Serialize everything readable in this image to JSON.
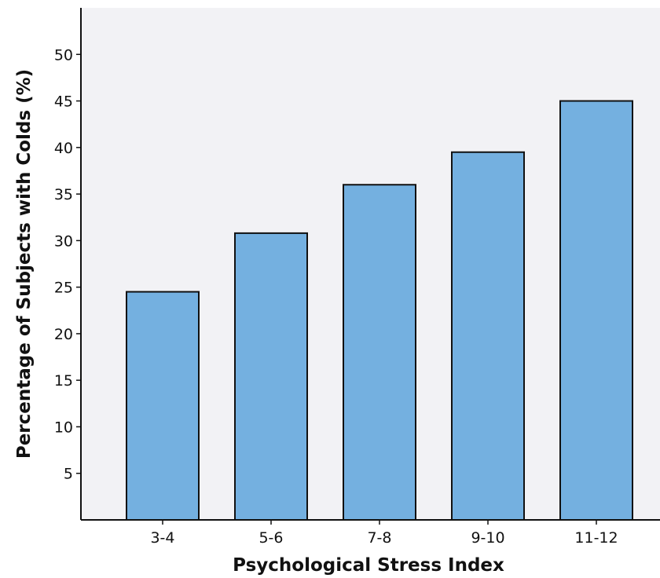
{
  "chart_data": {
    "type": "bar",
    "title": "",
    "xlabel": "Psychological Stress Index",
    "ylabel": "Percentage of Subjects with Colds (%)",
    "categories": [
      "3-4",
      "5-6",
      "7-8",
      "9-10",
      "11-12"
    ],
    "values": [
      24.5,
      30.8,
      36.0,
      39.5,
      45.0
    ],
    "ylim": [
      0,
      55
    ],
    "yticks": [
      5,
      10,
      15,
      20,
      25,
      30,
      35,
      40,
      45,
      50
    ],
    "grid": false,
    "legend": "none",
    "colors": {
      "bar_fill": "#74b0e0",
      "bar_stroke": "#111111",
      "plot_background": "#f2f2f5",
      "axis": "#111111"
    }
  }
}
